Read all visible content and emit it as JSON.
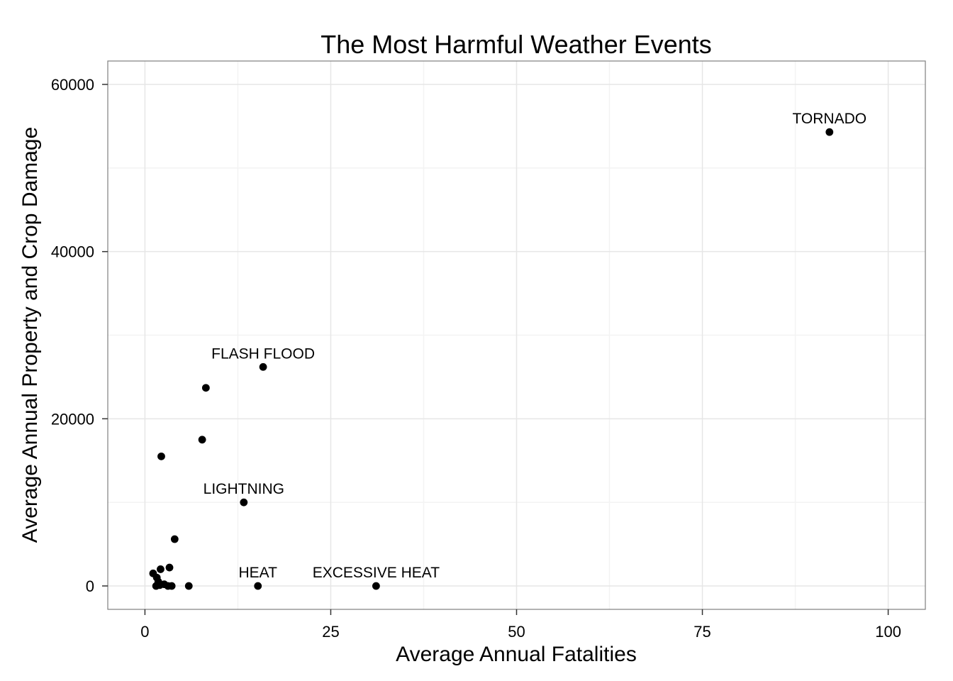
{
  "chart_data": {
    "type": "scatter",
    "title": "The Most Harmful Weather Events",
    "xlabel": "Average Annual Fatalities",
    "ylabel": "Average Annual Property and Crop Damage",
    "xlim": [
      -5,
      105
    ],
    "ylim": [
      -2800,
      62800
    ],
    "x_ticks": [
      0,
      25,
      50,
      75,
      100
    ],
    "y_ticks": [
      0,
      20000,
      40000,
      60000
    ],
    "x_minor_ticks": [
      12.5,
      37.5,
      62.5,
      87.5
    ],
    "y_minor_ticks": [
      10000,
      30000,
      50000
    ],
    "grid": true,
    "legend": "none",
    "colors": {
      "points": "#000000",
      "panel_border": "#7f7f7f",
      "grid_major": "#e6e6e6",
      "grid_minor": "#f3f3f3"
    },
    "points": [
      {
        "x": 92.1,
        "y": 54300,
        "label": "TORNADO"
      },
      {
        "x": 15.9,
        "y": 26200,
        "label": "FLASH FLOOD"
      },
      {
        "x": 8.2,
        "y": 23700,
        "label": ""
      },
      {
        "x": 7.7,
        "y": 17500,
        "label": ""
      },
      {
        "x": 2.2,
        "y": 15500,
        "label": ""
      },
      {
        "x": 13.3,
        "y": 10000,
        "label": "LIGHTNING"
      },
      {
        "x": 4.0,
        "y": 5600,
        "label": ""
      },
      {
        "x": 1.1,
        "y": 1500,
        "label": ""
      },
      {
        "x": 2.1,
        "y": 2000,
        "label": ""
      },
      {
        "x": 3.3,
        "y": 2200,
        "label": ""
      },
      {
        "x": 1.6,
        "y": 1000,
        "label": ""
      },
      {
        "x": 1.8,
        "y": 500,
        "label": ""
      },
      {
        "x": 1.5,
        "y": 0,
        "label": ""
      },
      {
        "x": 2.0,
        "y": 100,
        "label": ""
      },
      {
        "x": 2.6,
        "y": 200,
        "label": ""
      },
      {
        "x": 3.1,
        "y": 0,
        "label": ""
      },
      {
        "x": 3.6,
        "y": 0,
        "label": ""
      },
      {
        "x": 5.9,
        "y": 0,
        "label": ""
      },
      {
        "x": 15.2,
        "y": 0,
        "label": "HEAT"
      },
      {
        "x": 31.1,
        "y": 0,
        "label": "EXCESSIVE HEAT"
      }
    ]
  }
}
